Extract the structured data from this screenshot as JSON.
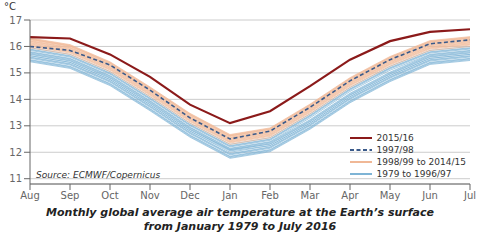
{
  "chart_data": {
    "type": "line",
    "title": "Monthly global average air temperature at the Earth’s surface\nfrom January 1979 to July 2016",
    "ylabel": "°C",
    "annotations": [
      "Source: ECMWF/Copernicus"
    ],
    "categories": [
      "Aug",
      "Sep",
      "Oct",
      "Nov",
      "Dec",
      "Jan",
      "Feb",
      "Mar",
      "Apr",
      "May",
      "Jun",
      "Jul"
    ],
    "ylim": [
      10.8,
      17.0
    ],
    "yticks": [
      11,
      12,
      13,
      14,
      15,
      16,
      17
    ],
    "grid": true,
    "legend": "lower right",
    "series": [
      {
        "name": "1979 to 1996/97",
        "color": "#7eb4d5",
        "values": [
          15.75,
          15.5,
          14.85,
          13.9,
          12.9,
          12.1,
          12.35,
          13.2,
          14.2,
          15.0,
          15.65,
          15.8
        ]
      },
      {
        "name": "1979 to 1996/97",
        "color": "#7eb4d5",
        "values": [
          15.65,
          15.4,
          14.75,
          13.8,
          12.8,
          12.05,
          12.25,
          13.1,
          14.1,
          14.9,
          15.55,
          15.7
        ]
      },
      {
        "name": "1979 to 1996/97",
        "color": "#7eb4d5",
        "values": [
          15.8,
          15.55,
          14.9,
          13.95,
          12.95,
          12.15,
          12.4,
          13.3,
          14.3,
          15.1,
          15.7,
          15.85
        ]
      },
      {
        "name": "1979 to 1996/97",
        "color": "#7eb4d5",
        "values": [
          15.6,
          15.35,
          14.7,
          13.75,
          12.75,
          11.95,
          12.2,
          13.05,
          14.05,
          14.85,
          15.5,
          15.65
        ]
      },
      {
        "name": "1979 to 1996/97",
        "color": "#7eb4d5",
        "values": [
          15.7,
          15.45,
          14.8,
          13.85,
          12.85,
          12.1,
          12.3,
          13.15,
          14.15,
          14.95,
          15.6,
          15.75
        ]
      },
      {
        "name": "1979 to 1996/97",
        "color": "#7eb4d5",
        "values": [
          15.85,
          15.6,
          14.95,
          14.0,
          13.0,
          12.2,
          12.45,
          13.35,
          14.35,
          15.15,
          15.75,
          15.9
        ]
      },
      {
        "name": "1979 to 1996/97",
        "color": "#7eb4d5",
        "values": [
          15.55,
          15.3,
          14.65,
          13.7,
          12.7,
          11.9,
          12.15,
          13.0,
          14.0,
          14.8,
          15.45,
          15.6
        ]
      },
      {
        "name": "1979 to 1996/97",
        "color": "#7eb4d5",
        "values": [
          15.9,
          15.65,
          15.0,
          14.05,
          13.05,
          12.25,
          12.5,
          13.4,
          14.4,
          15.2,
          15.8,
          15.95
        ]
      },
      {
        "name": "1979 to 1996/97",
        "color": "#7eb4d5",
        "values": [
          15.5,
          15.25,
          14.6,
          13.65,
          12.65,
          11.85,
          12.1,
          12.95,
          13.95,
          14.75,
          15.4,
          15.55
        ]
      },
      {
        "name": "1979 to 1996/97",
        "color": "#7eb4d5",
        "values": [
          15.45,
          15.2,
          14.55,
          13.6,
          12.6,
          11.8,
          12.05,
          12.9,
          13.9,
          14.7,
          15.35,
          15.5
        ]
      },
      {
        "name": "1979 to 1996/97",
        "color": "#7eb4d5",
        "values": [
          15.95,
          15.7,
          15.05,
          14.1,
          13.1,
          12.3,
          12.55,
          13.45,
          14.45,
          15.25,
          15.85,
          16.0
        ]
      },
      {
        "name": "1979 to 1996/97",
        "color": "#7eb4d5",
        "values": [
          15.65,
          15.4,
          14.75,
          13.8,
          12.8,
          12.0,
          12.25,
          13.1,
          14.1,
          14.9,
          15.55,
          15.7
        ]
      },
      {
        "name": "1979 to 1996/97",
        "color": "#7eb4d5",
        "values": [
          15.58,
          15.33,
          14.68,
          13.73,
          12.73,
          11.93,
          12.18,
          13.03,
          14.03,
          14.83,
          15.48,
          15.63
        ]
      },
      {
        "name": "1979 to 1996/97",
        "color": "#7eb4d5",
        "values": [
          15.72,
          15.47,
          14.82,
          13.87,
          12.87,
          12.07,
          12.32,
          13.17,
          14.17,
          14.97,
          15.62,
          15.77
        ]
      },
      {
        "name": "1979 to 1996/97",
        "color": "#7eb4d5",
        "values": [
          15.48,
          15.23,
          14.58,
          13.63,
          12.63,
          11.83,
          12.08,
          12.93,
          13.93,
          14.73,
          15.38,
          15.53
        ]
      },
      {
        "name": "1979 to 1996/97",
        "color": "#7eb4d5",
        "values": [
          15.88,
          15.63,
          14.98,
          14.03,
          13.03,
          12.23,
          12.48,
          13.38,
          14.38,
          15.18,
          15.78,
          15.93
        ]
      },
      {
        "name": "1979 to 1996/97",
        "color": "#7eb4d5",
        "values": [
          15.42,
          15.17,
          14.52,
          13.57,
          12.57,
          11.77,
          12.02,
          12.87,
          13.87,
          14.67,
          15.32,
          15.47
        ]
      },
      {
        "name": "1979 to 1996/97",
        "color": "#7eb4d5",
        "values": [
          15.78,
          15.53,
          14.88,
          13.93,
          12.93,
          12.13,
          12.38,
          13.23,
          14.23,
          15.03,
          15.68,
          15.83
        ]
      },
      {
        "name": "1998/99 to 2014/15",
        "color": "#f0b896",
        "values": [
          15.95,
          15.7,
          15.05,
          14.1,
          13.1,
          12.3,
          12.55,
          13.45,
          14.45,
          15.25,
          15.85,
          16.0
        ]
      },
      {
        "name": "1998/99 to 2014/15",
        "color": "#f0b896",
        "values": [
          16.0,
          15.75,
          15.1,
          14.15,
          13.15,
          12.35,
          12.6,
          13.5,
          14.5,
          15.3,
          15.9,
          16.05
        ]
      },
      {
        "name": "1998/99 to 2014/15",
        "color": "#f0b896",
        "values": [
          16.05,
          15.8,
          15.15,
          14.2,
          13.2,
          12.4,
          12.65,
          13.55,
          14.55,
          15.35,
          15.95,
          16.1
        ]
      },
      {
        "name": "1998/99 to 2014/15",
        "color": "#f0b896",
        "values": [
          16.1,
          15.85,
          15.2,
          14.25,
          13.25,
          12.45,
          12.7,
          13.6,
          14.6,
          15.4,
          16.0,
          16.15
        ]
      },
      {
        "name": "1998/99 to 2014/15",
        "color": "#f0b896",
        "values": [
          16.15,
          15.9,
          15.25,
          14.3,
          13.3,
          12.5,
          12.75,
          13.65,
          14.65,
          15.45,
          16.05,
          16.2
        ]
      },
      {
        "name": "1998/99 to 2014/15",
        "color": "#f0b896",
        "values": [
          16.2,
          15.95,
          15.3,
          14.35,
          13.35,
          12.55,
          12.8,
          13.7,
          14.7,
          15.5,
          16.1,
          16.25
        ]
      },
      {
        "name": "1998/99 to 2014/15",
        "color": "#f0b896",
        "values": [
          16.08,
          15.83,
          15.18,
          14.23,
          13.23,
          12.43,
          12.68,
          13.58,
          14.58,
          15.38,
          15.98,
          16.13
        ]
      },
      {
        "name": "1998/99 to 2014/15",
        "color": "#f0b896",
        "values": [
          16.18,
          15.93,
          15.28,
          14.33,
          13.33,
          12.53,
          12.78,
          13.68,
          14.68,
          15.48,
          16.08,
          16.23
        ]
      },
      {
        "name": "1998/99 to 2014/15",
        "color": "#f0b896",
        "values": [
          16.03,
          15.78,
          15.13,
          14.18,
          13.18,
          12.38,
          12.63,
          13.53,
          14.53,
          15.33,
          15.93,
          16.08
        ]
      },
      {
        "name": "1998/99 to 2014/15",
        "color": "#f0b896",
        "values": [
          16.13,
          15.88,
          15.23,
          14.28,
          13.28,
          12.48,
          12.73,
          13.63,
          14.63,
          15.43,
          16.03,
          16.18
        ]
      },
      {
        "name": "1998/99 to 2014/15",
        "color": "#f0b896",
        "values": [
          16.22,
          15.97,
          15.32,
          14.37,
          13.37,
          12.57,
          12.82,
          13.72,
          14.72,
          15.52,
          16.12,
          16.27
        ]
      },
      {
        "name": "1998/99 to 2014/15",
        "color": "#f0b896",
        "values": [
          16.25,
          16.0,
          15.35,
          14.4,
          13.4,
          12.6,
          12.85,
          13.75,
          14.75,
          15.55,
          16.15,
          16.3
        ]
      },
      {
        "name": "1998/99 to 2014/15",
        "color": "#f0b896",
        "values": [
          16.28,
          16.03,
          15.38,
          14.43,
          13.43,
          12.63,
          12.88,
          13.78,
          14.78,
          15.58,
          16.18,
          16.33
        ]
      },
      {
        "name": "1998/99 to 2014/15",
        "color": "#f0b896",
        "values": [
          16.3,
          16.05,
          15.4,
          14.45,
          13.45,
          12.65,
          12.9,
          13.8,
          14.8,
          15.6,
          16.2,
          16.35
        ]
      },
      {
        "name": "1998/99 to 2014/15",
        "color": "#f0b896",
        "values": [
          16.32,
          16.07,
          15.42,
          14.47,
          13.47,
          12.67,
          12.92,
          13.82,
          14.82,
          15.62,
          16.22,
          16.37
        ]
      },
      {
        "name": "1998/99 to 2014/15",
        "color": "#f0b896",
        "values": [
          16.27,
          16.02,
          15.37,
          14.42,
          13.42,
          12.62,
          12.87,
          13.77,
          14.77,
          15.57,
          16.17,
          16.32
        ]
      },
      {
        "name": "1997/98",
        "color": "#3a5a8a",
        "line_style": "dashed",
        "values": [
          16.0,
          15.85,
          15.3,
          14.35,
          13.3,
          12.5,
          12.8,
          13.7,
          14.7,
          15.5,
          16.1,
          16.25
        ]
      },
      {
        "name": "2015/16",
        "color": "#8b1a1a",
        "values": [
          16.35,
          16.3,
          15.7,
          14.85,
          13.8,
          13.1,
          13.55,
          14.5,
          15.5,
          16.2,
          16.55,
          16.65
        ]
      }
    ]
  }
}
